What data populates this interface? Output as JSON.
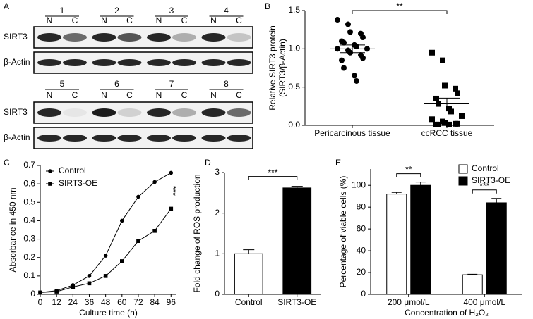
{
  "blot": {
    "panel_label": "A",
    "blocks": [
      {
        "groups": [
          {
            "number": "1",
            "lanes": [
              "N",
              "C"
            ]
          },
          {
            "number": "2",
            "lanes": [
              "N",
              "C"
            ]
          },
          {
            "number": "3",
            "lanes": [
              "N",
              "C"
            ]
          },
          {
            "number": "4",
            "lanes": [
              "N",
              "C"
            ]
          }
        ],
        "rows": [
          "SIRT3",
          "β-Actin"
        ]
      },
      {
        "groups": [
          {
            "number": "5",
            "lanes": [
              "N",
              "C"
            ]
          },
          {
            "number": "6",
            "lanes": [
              "N",
              "C"
            ]
          },
          {
            "number": "7",
            "lanes": [
              "N",
              "C"
            ]
          },
          {
            "number": "8",
            "lanes": [
              "N",
              "C"
            ]
          }
        ],
        "rows": [
          "SIRT3",
          "β-Actin"
        ]
      }
    ]
  },
  "chart_data": [
    {
      "type": "strip",
      "panel_label": "B",
      "ylabel": [
        "Relative SIRT3 protein",
        "(SIRT3/β-Actin)"
      ],
      "categories": [
        "Pericarcinous tissue",
        "ccRCC tissue"
      ],
      "series": [
        {
          "marker": "circle",
          "color": "#000000",
          "values": [
            1.38,
            1.32,
            1.22,
            1.2,
            1.15,
            1.1,
            1.08,
            1.05,
            1.03,
            1.0,
            1.0,
            0.98,
            0.95,
            0.92,
            0.88,
            0.85,
            0.75,
            0.65,
            0.58
          ],
          "mean": 1.0,
          "sem": 0.05
        },
        {
          "marker": "square",
          "color": "#000000",
          "values": [
            0.95,
            0.85,
            0.52,
            0.48,
            0.42,
            0.35,
            0.28,
            0.22,
            0.18,
            0.12,
            0.08,
            0.05,
            0.03,
            0.02,
            0.02,
            0.01,
            0.01,
            0.01
          ],
          "mean": 0.29,
          "sem": 0.065
        }
      ],
      "ylim": [
        0,
        1.5
      ],
      "yticks": [
        {
          "value": 0,
          "label": "0.0"
        },
        0.5,
        {
          "value": 1,
          "label": "1.0"
        },
        1.5
      ],
      "annotation": "**"
    },
    {
      "type": "line",
      "panel_label": "C",
      "xlabel": "Culture time (h)",
      "ylabel": "Absorbance in 450 nm",
      "x": [
        0,
        12,
        24,
        36,
        48,
        60,
        72,
        84,
        96
      ],
      "series": [
        {
          "name": "Control",
          "marker": "circle",
          "color": "#000000",
          "values": [
            0.01,
            0.02,
            0.05,
            0.1,
            0.21,
            0.4,
            0.53,
            0.61,
            0.66
          ]
        },
        {
          "name": "SIRT3-OE",
          "marker": "square",
          "color": "#000000",
          "values": [
            0.01,
            0.015,
            0.04,
            0.06,
            0.1,
            0.18,
            0.29,
            0.345,
            0.465
          ]
        }
      ],
      "xlim": [
        0,
        100
      ],
      "xticks": [
        0,
        12,
        24,
        36,
        48,
        60,
        72,
        84,
        96
      ],
      "ylim": [
        0,
        0.7
      ],
      "yticks": [
        0,
        0.1,
        0.2,
        0.3,
        0.4,
        0.5,
        0.6,
        0.7
      ],
      "legend": "upper left",
      "annotation": "***"
    },
    {
      "type": "bar",
      "panel_label": "D",
      "ylabel": "Fold change of ROS production",
      "categories": [
        "Control",
        "SIRT3-OE"
      ],
      "values": [
        1.0,
        2.62
      ],
      "errors": [
        0.1,
        0.04
      ],
      "colors": [
        "#ffffff",
        "#000000"
      ],
      "ylim": [
        0,
        3
      ],
      "yticks": [
        0,
        1,
        2,
        3
      ],
      "annotation": "***"
    },
    {
      "type": "grouped-bar",
      "panel_label": "E",
      "ylabel": "Percentage of viable cells (%)",
      "xlabel": "Concentration of H₂O₂",
      "categories": [
        "200 μmol/L",
        "400 μmol/L"
      ],
      "series": [
        {
          "name": "Control",
          "color": "#ffffff",
          "values": [
            92,
            18
          ],
          "errors": [
            1.5,
            0.5
          ]
        },
        {
          "name": "SIRT3-OE",
          "color": "#000000",
          "values": [
            100,
            84
          ],
          "errors": [
            3,
            4
          ]
        }
      ],
      "ylim": [
        0,
        115
      ],
      "yticks": [
        0,
        20,
        40,
        60,
        80,
        100
      ],
      "legend": "upper right",
      "annotations": [
        "**",
        "***"
      ]
    }
  ]
}
